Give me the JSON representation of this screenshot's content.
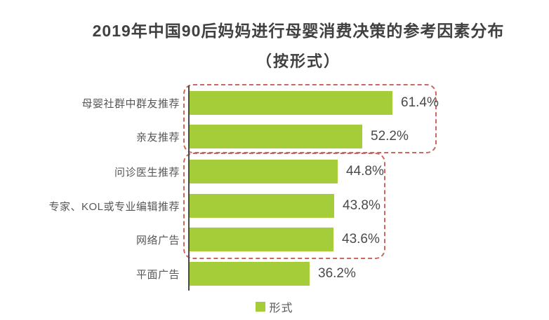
{
  "title": {
    "line1": "2019年中国90后妈妈进行母婴消费决策的参考因素分布",
    "line2": "（按形式）"
  },
  "chart_data": {
    "type": "bar",
    "orientation": "horizontal",
    "categories": [
      "母婴社群中群友推荐",
      "亲友推荐",
      "问诊医生推荐",
      "专家、KOL或专业编辑推荐",
      "网络广告",
      "平面广告"
    ],
    "values": [
      61.4,
      52.2,
      44.8,
      43.8,
      43.6,
      36.2
    ],
    "value_labels": [
      "61.4%",
      "52.2%",
      "44.8%",
      "43.8%",
      "43.6%",
      "36.2%"
    ],
    "xlim": [
      0,
      75
    ],
    "grid": false,
    "legend_position": "bottom-center",
    "series_name": "形式",
    "annotations": {
      "group_boxes": [
        {
          "style": "red-dashed-rounded",
          "encloses": [
            "母婴社群中群友推荐",
            "亲友推荐"
          ]
        },
        {
          "style": "red-dashed-rounded",
          "encloses": [
            "问诊医生推荐",
            "专家、KOL或专业编辑推荐",
            "网络广告"
          ]
        }
      ]
    }
  },
  "legend": {
    "label": "形式"
  },
  "colors": {
    "bar_green": "#a5cd39",
    "group_box_red": "#cb675e",
    "title_text": "#404040",
    "label_text": "#585656",
    "axis_line": "#4a4a4a"
  }
}
